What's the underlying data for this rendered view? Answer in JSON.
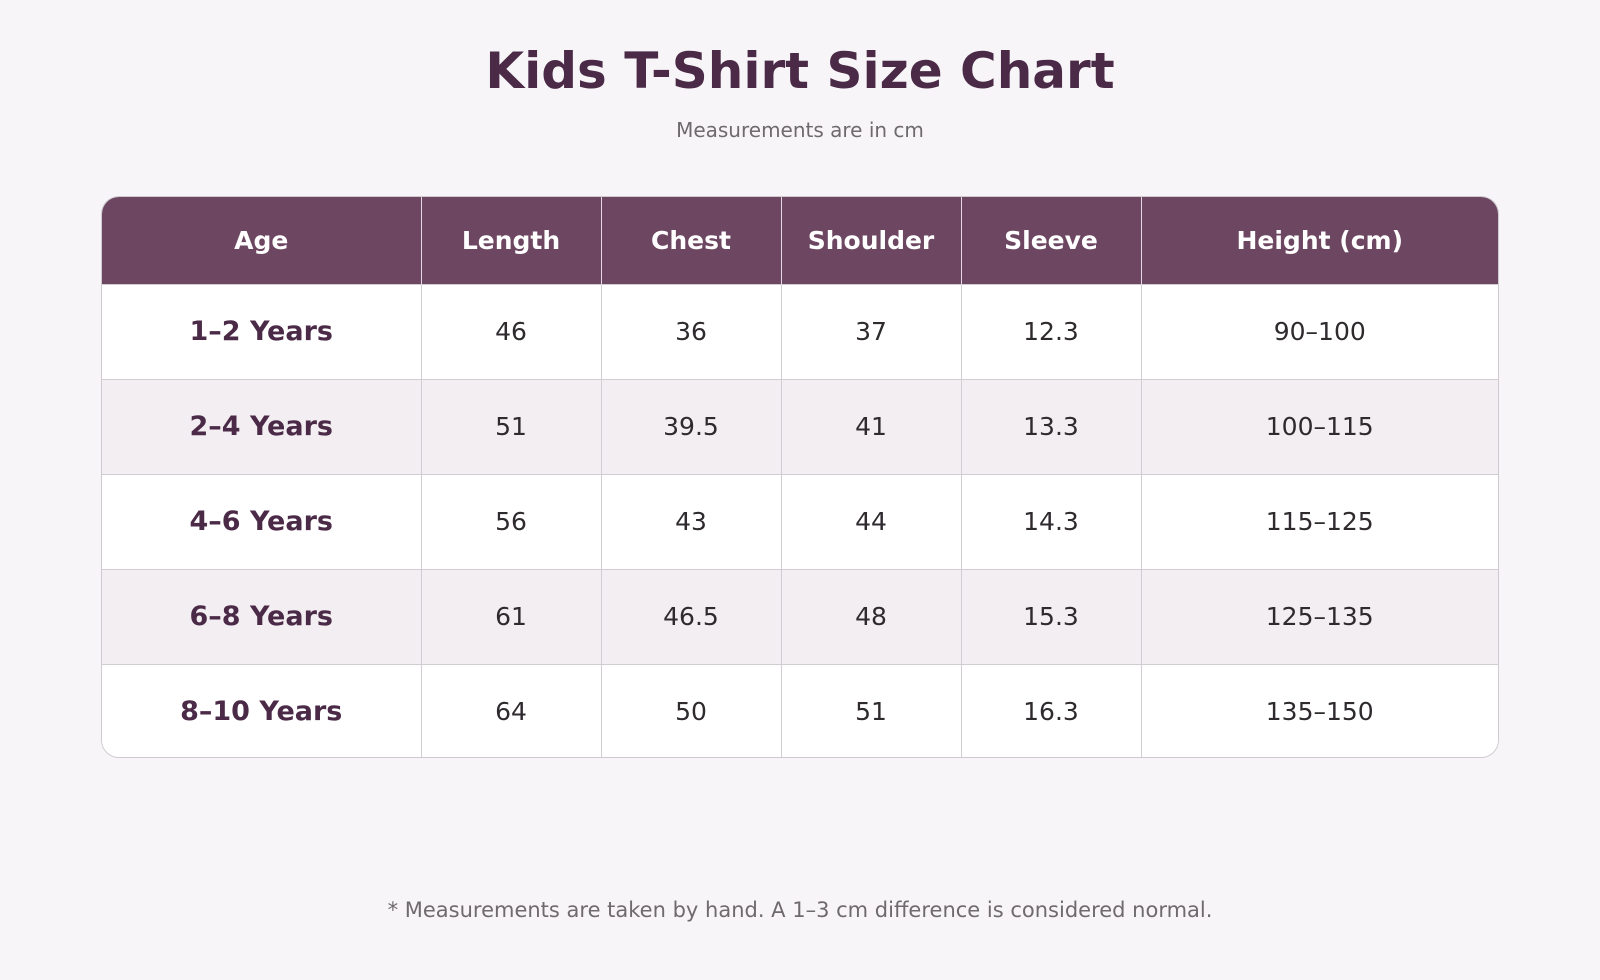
{
  "title": "Kids T-Shirt Size Chart",
  "subtitle": "Measurements are in cm",
  "table": {
    "headers": [
      "Age",
      "Length",
      "Chest",
      "Shoulder",
      "Sleeve",
      "Height (cm)"
    ],
    "rows": [
      [
        "1–2 Years",
        "46",
        "36",
        "37",
        "12.3",
        "90–100"
      ],
      [
        "2–4 Years",
        "51",
        "39.5",
        "41",
        "13.3",
        "100–115"
      ],
      [
        "4–6 Years",
        "56",
        "43",
        "44",
        "14.3",
        "115–125"
      ],
      [
        "6–8 Years",
        "61",
        "46.5",
        "48",
        "15.3",
        "125–135"
      ],
      [
        "8–10 Years",
        "64",
        "50",
        "51",
        "16.3",
        "135–150"
      ]
    ]
  },
  "footnote": "* Measurements are taken by hand. A 1–3 cm difference is considered normal.",
  "colors": {
    "header_bg": "#6d4761",
    "title": "#4a2a47",
    "alt_row": "#f3eef2",
    "page_bg": "#f7f5f8"
  }
}
